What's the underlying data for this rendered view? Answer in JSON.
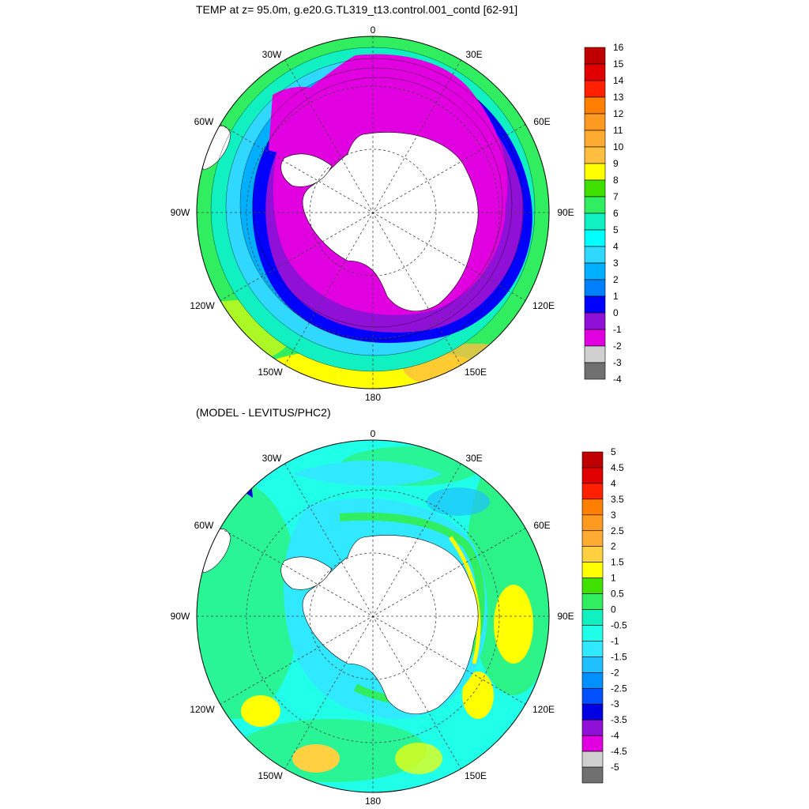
{
  "panels": [
    {
      "title": "TEMP at z=  95.0m, g.e20.G.TL319_t13.control.001_contd [62-91]",
      "lon_labels": {
        "top": "0",
        "bottom": "180",
        "left": "90W",
        "right": "90E",
        "tl1": "30W",
        "tl2": "60W",
        "tr1": "30E",
        "tr2": "60E",
        "bl1": "120W",
        "bl2": "150W",
        "br1": "120E",
        "br2": "150E"
      },
      "colorbar": {
        "labels": [
          "16",
          "15",
          "14",
          "13",
          "12",
          "11",
          "10",
          "9",
          "8",
          "7",
          "6",
          "5",
          "4",
          "3",
          "2",
          "1",
          "0",
          "-1",
          "-2",
          "-3",
          "-4"
        ],
        "colors": [
          "#c00000",
          "#e00000",
          "#ff2000",
          "#ff8000",
          "#ff9a20",
          "#ffaa30",
          "#ffbe40",
          "#ffff00",
          "#40e000",
          "#30ee60",
          "#10f0c0",
          "#00ffff",
          "#30d8ff",
          "#00b0ff",
          "#0080ff",
          "#0000ff",
          "#9010d8",
          "#e000e0",
          "#d0d0d0",
          "#707070"
        ]
      }
    },
    {
      "title": "(MODEL - LEVITUS/PHC2)",
      "lon_labels": {
        "top": "0",
        "bottom": "180",
        "left": "90W",
        "right": "90E",
        "tl1": "30W",
        "tl2": "60W",
        "tr1": "30E",
        "tr2": "60E",
        "bl1": "120W",
        "bl2": "150W",
        "br1": "120E",
        "br2": "150E"
      },
      "colorbar": {
        "labels": [
          "5",
          "4.5",
          "4",
          "3.5",
          "3",
          "2.5",
          "2",
          "1.5",
          "1",
          "0.5",
          "0",
          "-0.5",
          "-1",
          "-1.5",
          "-2",
          "-2.5",
          "-3",
          "-3.5",
          "-4",
          "-4.5",
          "-5"
        ],
        "colors": [
          "#c00000",
          "#e00000",
          "#ff2000",
          "#ff8000",
          "#ff9a20",
          "#ffaa30",
          "#ffd040",
          "#ffff00",
          "#40e000",
          "#30ee60",
          "#10f0c0",
          "#20ffe8",
          "#30e8ff",
          "#20c0ff",
          "#0090ff",
          "#0050ff",
          "#0000e0",
          "#9010d8",
          "#e000e0",
          "#d0d0d0",
          "#707070"
        ]
      }
    }
  ]
}
